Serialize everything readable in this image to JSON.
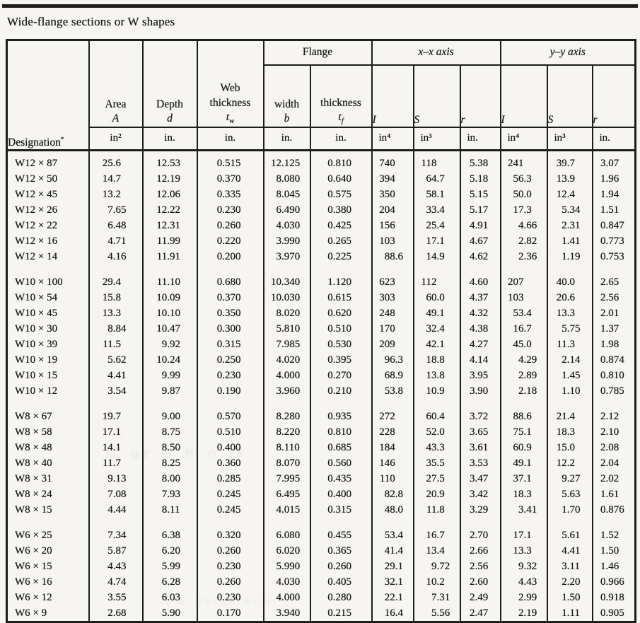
{
  "page": {
    "title": "Wide-flange sections or W shapes"
  },
  "table": {
    "designation": {
      "label": "Designation",
      "note_mark": "*"
    },
    "bands": {
      "flange": "Flange",
      "xx": "x–x axis",
      "yy": "y–y axis"
    },
    "cols": {
      "area": {
        "name": "Area",
        "sym": "A"
      },
      "depth": {
        "name": "Depth",
        "sym": "d"
      },
      "web": {
        "name1": "Web",
        "name2": "thickness",
        "sym": "t",
        "sub": "w"
      },
      "width": {
        "name": "width",
        "sym": "b"
      },
      "thickness": {
        "name": "thickness",
        "sym": "t",
        "sub": "f"
      },
      "Ix": "I",
      "Sx": "S",
      "rx": "r",
      "Iy": "I",
      "Sy": "S",
      "ry": "r"
    },
    "units": [
      "in²",
      "in.",
      "in.",
      "in.",
      "in.",
      "in⁴",
      "in³",
      "in.",
      "in⁴",
      "in³",
      "in."
    ],
    "groups": [
      {
        "rows": [
          {
            "d": "W12 × 87",
            "v": [
              "25.6",
              "12.53",
              "0.515",
              "12.125",
              "0.810",
              "740",
              "118",
              "5.38",
              "241",
              "39.7",
              "3.07"
            ]
          },
          {
            "d": "W12 × 50",
            "v": [
              "14.7",
              "12.19",
              "0.370",
              "8.080",
              "0.640",
              "394",
              "64.7",
              "5.18",
              "56.3",
              "13.9",
              "1.96"
            ]
          },
          {
            "d": "W12 × 45",
            "v": [
              "13.2",
              "12.06",
              "0.335",
              "8.045",
              "0.575",
              "350",
              "58.1",
              "5.15",
              "50.0",
              "12.4",
              "1.94"
            ]
          },
          {
            "d": "W12 × 26",
            "v": [
              "7.65",
              "12.22",
              "0.230",
              "6.490",
              "0.380",
              "204",
              "33.4",
              "5.17",
              "17.3",
              "5.34",
              "1.51"
            ]
          },
          {
            "d": "W12 × 22",
            "v": [
              "6.48",
              "12.31",
              "0.260",
              "4.030",
              "0.425",
              "156",
              "25.4",
              "4.91",
              "4.66",
              "2.31",
              "0.847"
            ]
          },
          {
            "d": "W12 × 16",
            "v": [
              "4.71",
              "11.99",
              "0.220",
              "3.990",
              "0.265",
              "103",
              "17.1",
              "4.67",
              "2.82",
              "1.41",
              "0.773"
            ]
          },
          {
            "d": "W12 × 14",
            "v": [
              "4.16",
              "11.91",
              "0.200",
              "3.970",
              "0.225",
              "88.6",
              "14.9",
              "4.62",
              "2.36",
              "1.19",
              "0.753"
            ]
          }
        ]
      },
      {
        "rows": [
          {
            "d": "W10 × 100",
            "v": [
              "29.4",
              "11.10",
              "0.680",
              "10.340",
              "1.120",
              "623",
              "112",
              "4.60",
              "207",
              "40.0",
              "2.65"
            ]
          },
          {
            "d": "W10 × 54",
            "v": [
              "15.8",
              "10.09",
              "0.370",
              "10.030",
              "0.615",
              "303",
              "60.0",
              "4.37",
              "103",
              "20.6",
              "2.56"
            ]
          },
          {
            "d": "W10 × 45",
            "v": [
              "13.3",
              "10.10",
              "0.350",
              "8.020",
              "0.620",
              "248",
              "49.1",
              "4.32",
              "53.4",
              "13.3",
              "2.01"
            ]
          },
          {
            "d": "W10 × 30",
            "v": [
              "8.84",
              "10.47",
              "0.300",
              "5.810",
              "0.510",
              "170",
              "32.4",
              "4.38",
              "16.7",
              "5.75",
              "1.37"
            ]
          },
          {
            "d": "W10 × 39",
            "v": [
              "11.5",
              "9.92",
              "0.315",
              "7.985",
              "0.530",
              "209",
              "42.1",
              "4.27",
              "45.0",
              "11.3",
              "1.98"
            ]
          },
          {
            "d": "W10 × 19",
            "v": [
              "5.62",
              "10.24",
              "0.250",
              "4.020",
              "0.395",
              "96.3",
              "18.8",
              "4.14",
              "4.29",
              "2.14",
              "0.874"
            ]
          },
          {
            "d": "W10 × 15",
            "v": [
              "4.41",
              "9.99",
              "0.230",
              "4.000",
              "0.270",
              "68.9",
              "13.8",
              "3.95",
              "2.89",
              "1.45",
              "0.810"
            ]
          },
          {
            "d": "W10 × 12",
            "v": [
              "3.54",
              "9.87",
              "0.190",
              "3.960",
              "0.210",
              "53.8",
              "10.9",
              "3.90",
              "2.18",
              "1.10",
              "0.785"
            ]
          }
        ]
      },
      {
        "rows": [
          {
            "d": "W8 × 67",
            "v": [
              "19.7",
              "9.00",
              "0.570",
              "8.280",
              "0.935",
              "272",
              "60.4",
              "3.72",
              "88.6",
              "21.4",
              "2.12"
            ]
          },
          {
            "d": "W8 × 58",
            "v": [
              "17.1",
              "8.75",
              "0.510",
              "8.220",
              "0.810",
              "228",
              "52.0",
              "3.65",
              "75.1",
              "18.3",
              "2.10"
            ]
          },
          {
            "d": "W8 × 48",
            "v": [
              "14.1",
              "8.50",
              "0.400",
              "8.110",
              "0.685",
              "184",
              "43.3",
              "3.61",
              "60.9",
              "15.0",
              "2.08"
            ]
          },
          {
            "d": "W8 × 40",
            "v": [
              "11.7",
              "8.25",
              "0.360",
              "8.070",
              "0.560",
              "146",
              "35.5",
              "3.53",
              "49.1",
              "12.2",
              "2.04"
            ]
          },
          {
            "d": "W8 × 31",
            "v": [
              "9.13",
              "8.00",
              "0.285",
              "7.995",
              "0.435",
              "110",
              "27.5",
              "3.47",
              "37.1",
              "9.27",
              "2.02"
            ]
          },
          {
            "d": "W8 × 24",
            "v": [
              "7.08",
              "7.93",
              "0.245",
              "6.495",
              "0.400",
              "82.8",
              "20.9",
              "3.42",
              "18.3",
              "5.63",
              "1.61"
            ]
          },
          {
            "d": "W8 × 15",
            "v": [
              "4.44",
              "8.11",
              "0.245",
              "4.015",
              "0.315",
              "48.0",
              "11.8",
              "3.29",
              "3.41",
              "1.70",
              "0.876"
            ]
          }
        ]
      },
      {
        "rows": [
          {
            "d": "W6 × 25",
            "v": [
              "7.34",
              "6.38",
              "0.320",
              "6.080",
              "0.455",
              "53.4",
              "16.7",
              "2.70",
              "17.1",
              "5.61",
              "1.52"
            ]
          },
          {
            "d": "W6 × 20",
            "v": [
              "5.87",
              "6.20",
              "0.260",
              "6.020",
              "0.365",
              "41.4",
              "13.4",
              "2.66",
              "13.3",
              "4.41",
              "1.50"
            ]
          },
          {
            "d": "W6 × 15",
            "v": [
              "4.43",
              "5.99",
              "0.230",
              "5.990",
              "0.260",
              "29.1",
              "9.72",
              "2.56",
              "9.32",
              "3.11",
              "1.46"
            ]
          },
          {
            "d": "W6 × 16",
            "v": [
              "4.74",
              "6.28",
              "0.260",
              "4.030",
              "0.405",
              "32.1",
              "10.2",
              "2.60",
              "4.43",
              "2.20",
              "0.966"
            ]
          },
          {
            "d": "W6 × 12",
            "v": [
              "3.55",
              "6.03",
              "0.230",
              "4.000",
              "0.280",
              "22.1",
              "7.31",
              "2.49",
              "2.99",
              "1.50",
              "0.918"
            ]
          },
          {
            "d": "W6 × 9",
            "v": [
              "2.68",
              "5.90",
              "0.170",
              "3.940",
              "0.215",
              "16.4",
              "5.56",
              "2.47",
              "2.19",
              "1.11",
              "0.905"
            ]
          }
        ]
      }
    ]
  },
  "watermarks": [
    {
      "text": "C ur e h n ir"
    },
    {
      "text": "t e deter or t"
    },
    {
      "text": "f t t"
    }
  ]
}
